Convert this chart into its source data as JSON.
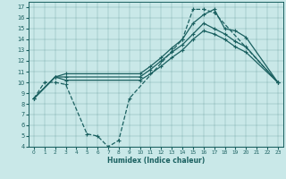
{
  "xlabel": "Humidex (Indice chaleur)",
  "bg_color": "#c9e8e8",
  "line_color": "#1a6060",
  "xlim": [
    -0.5,
    23.5
  ],
  "ylim": [
    4,
    17.5
  ],
  "xticks": [
    0,
    1,
    2,
    3,
    4,
    5,
    6,
    7,
    8,
    9,
    10,
    11,
    12,
    13,
    14,
    15,
    16,
    17,
    18,
    19,
    20,
    21,
    22,
    23
  ],
  "yticks": [
    4,
    5,
    6,
    7,
    8,
    9,
    10,
    11,
    12,
    13,
    14,
    15,
    16,
    17
  ],
  "line_dashed_x": [
    0,
    1,
    2,
    3,
    5,
    6,
    7,
    8,
    9,
    14,
    15,
    16,
    17,
    23
  ],
  "line_dashed_y": [
    8.5,
    10.0,
    10.0,
    9.8,
    5.2,
    5.0,
    4.0,
    4.6,
    8.5,
    14.0,
    16.8,
    16.8,
    16.5,
    10.0
  ],
  "line_solid1_x": [
    0,
    2,
    3,
    10,
    11,
    12,
    13,
    14,
    15,
    16,
    17,
    18,
    19,
    20,
    23
  ],
  "line_solid1_y": [
    8.5,
    10.5,
    10.8,
    10.8,
    11.5,
    12.3,
    13.2,
    14.0,
    15.5,
    16.3,
    16.8,
    15.0,
    14.8,
    14.2,
    10.0
  ],
  "line_solid2_x": [
    0,
    2,
    3,
    10,
    11,
    12,
    13,
    14,
    15,
    16,
    17,
    18,
    19,
    20,
    23
  ],
  "line_solid2_y": [
    8.5,
    10.5,
    10.5,
    10.5,
    11.2,
    12.0,
    12.8,
    13.5,
    14.5,
    15.5,
    15.0,
    14.5,
    13.8,
    13.3,
    10.0
  ],
  "line_solid3_x": [
    0,
    2,
    3,
    10,
    11,
    12,
    13,
    14,
    15,
    16,
    17,
    18,
    19,
    20,
    23
  ],
  "line_solid3_y": [
    8.5,
    10.5,
    10.2,
    10.2,
    10.8,
    11.5,
    12.3,
    13.0,
    14.0,
    14.8,
    14.5,
    14.0,
    13.3,
    12.8,
    10.0
  ]
}
